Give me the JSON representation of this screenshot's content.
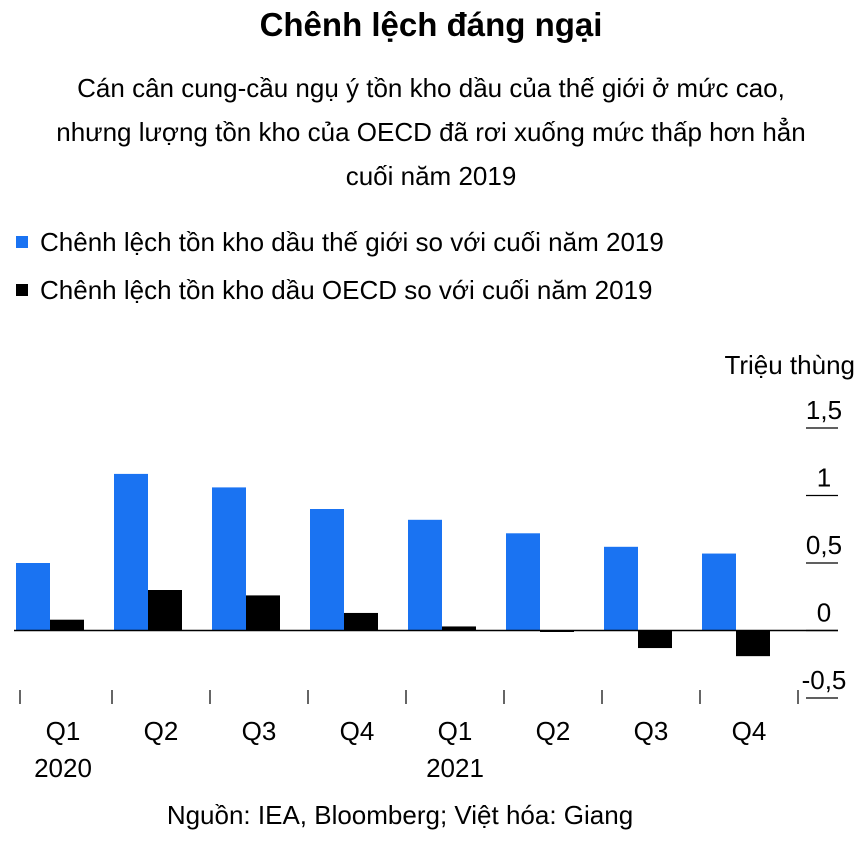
{
  "chart_data": {
    "type": "bar",
    "title": "Chênh lệch đáng ngại",
    "subtitle_lines": [
      "Cán cân cung-cầu ngụ ý tồn kho dầu của thế giới ở mức cao,",
      "nhưng lượng tồn kho của OECD đã rơi xuống mức thấp hơn hẳn",
      "cuối năm 2019"
    ],
    "ylabel": "Triệu thùng",
    "ylim": [
      -0.5,
      1.5
    ],
    "yticks": [
      1.5,
      1,
      0.5,
      0,
      -0.5
    ],
    "ytick_labels": [
      "1,5",
      "1",
      "0,5",
      "0",
      "-0,5"
    ],
    "categories": [
      "Q1",
      "Q2",
      "Q3",
      "Q4",
      "Q1",
      "Q2",
      "Q3",
      "Q4"
    ],
    "year_labels": [
      {
        "label": "2020",
        "index": 0
      },
      {
        "label": "2021",
        "index": 4
      }
    ],
    "series": [
      {
        "name": "Chênh lệch tồn kho dầu thế giới so với cuối năm 2019",
        "color": "#1a73f2",
        "values": [
          0.5,
          1.16,
          1.06,
          0.9,
          0.82,
          0.72,
          0.62,
          0.57
        ]
      },
      {
        "name": "Chênh lệch tồn kho dầu OECD so với cuối năm 2019",
        "color": "#000000",
        "values": [
          0.08,
          0.3,
          0.26,
          0.13,
          0.03,
          -0.01,
          -0.13,
          -0.19
        ]
      }
    ],
    "grid": false,
    "legend_position": "top-left",
    "y_axis_side": "right"
  },
  "source": "Nguồn: IEA, Bloomberg; Việt hóa: Giang"
}
